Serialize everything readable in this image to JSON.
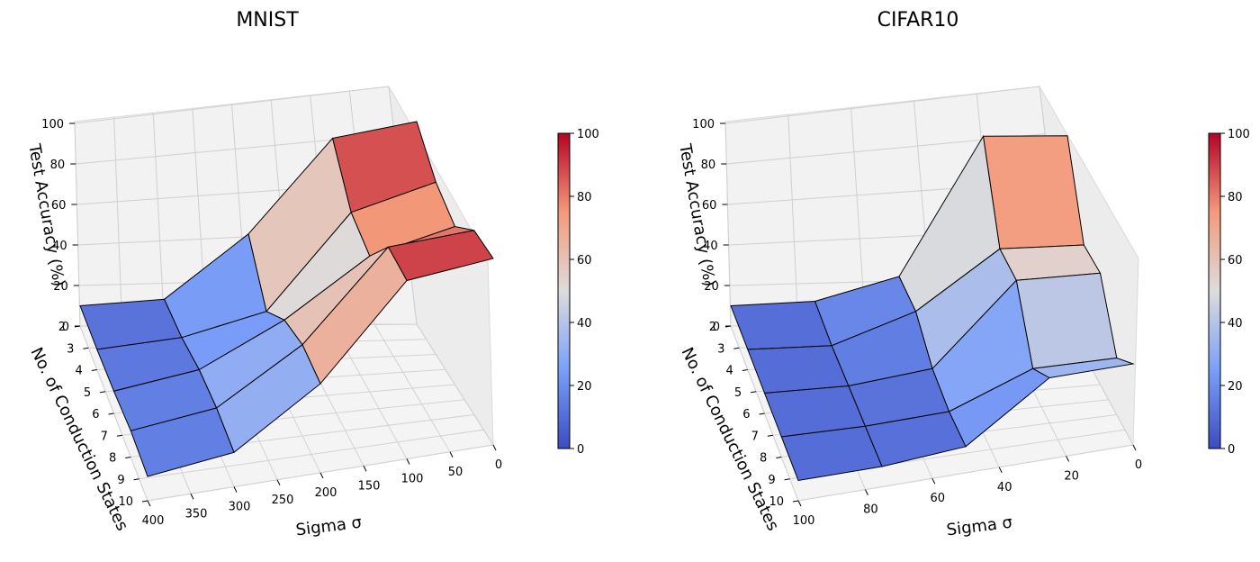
{
  "chart_data": [
    {
      "type": "surface",
      "title": "MNIST",
      "xlabel": "Sigma σ",
      "ylabel": "No. of Conduction States",
      "zlabel": "Test Accuracy (%)",
      "x_ticks": [
        "400",
        "350",
        "300",
        "250",
        "200",
        "150",
        "100",
        "50",
        "0"
      ],
      "y_ticks": [
        "2",
        "3",
        "4",
        "5",
        "6",
        "7",
        "8",
        "9",
        "10"
      ],
      "z_ticks": [
        "0",
        "20",
        "40",
        "60",
        "80",
        "100"
      ],
      "zlim": [
        0,
        100
      ],
      "sigma_values": [
        400,
        300,
        200,
        100,
        0
      ],
      "state_values": [
        2,
        4,
        6,
        8,
        10
      ],
      "grid_z": [
        [
          10,
          13,
          45,
          92,
          100
        ],
        [
          10,
          14,
          25,
          72,
          85
        ],
        [
          11,
          18,
          39,
          67,
          78
        ],
        [
          13,
          19,
          45,
          88,
          91
        ],
        [
          12,
          17,
          44,
          88,
          92
        ]
      ],
      "colorbar": {
        "min": 0,
        "max": 100,
        "ticks": [
          "0",
          "20",
          "40",
          "60",
          "80",
          "100"
        ]
      }
    },
    {
      "type": "surface",
      "title": "CIFAR10",
      "xlabel": "Sigma σ",
      "ylabel": "No. of Conduction States",
      "zlabel": "Test Accuracy (%)",
      "x_ticks": [
        "100",
        "80",
        "60",
        "40",
        "20",
        "0"
      ],
      "y_ticks": [
        "2",
        "3",
        "4",
        "5",
        "6",
        "7",
        "8",
        "9",
        "10"
      ],
      "z_ticks": [
        "0",
        "20",
        "40",
        "60",
        "80",
        "100"
      ],
      "zlim": [
        0,
        100
      ],
      "sigma_values": [
        100,
        75,
        50,
        25,
        0
      ],
      "state_values": [
        2,
        4,
        6,
        8,
        10
      ],
      "grid_z": [
        [
          10,
          12,
          24,
          93,
          93
        ],
        [
          10,
          10,
          25,
          54,
          54
        ],
        [
          10,
          10,
          15,
          55,
          55
        ],
        [
          10,
          10,
          12,
          28,
          28
        ],
        [
          10,
          10,
          13,
          40,
          40
        ]
      ],
      "colorbar": {
        "min": 0,
        "max": 100,
        "ticks": [
          "0",
          "20",
          "40",
          "60",
          "80",
          "100"
        ]
      }
    }
  ]
}
